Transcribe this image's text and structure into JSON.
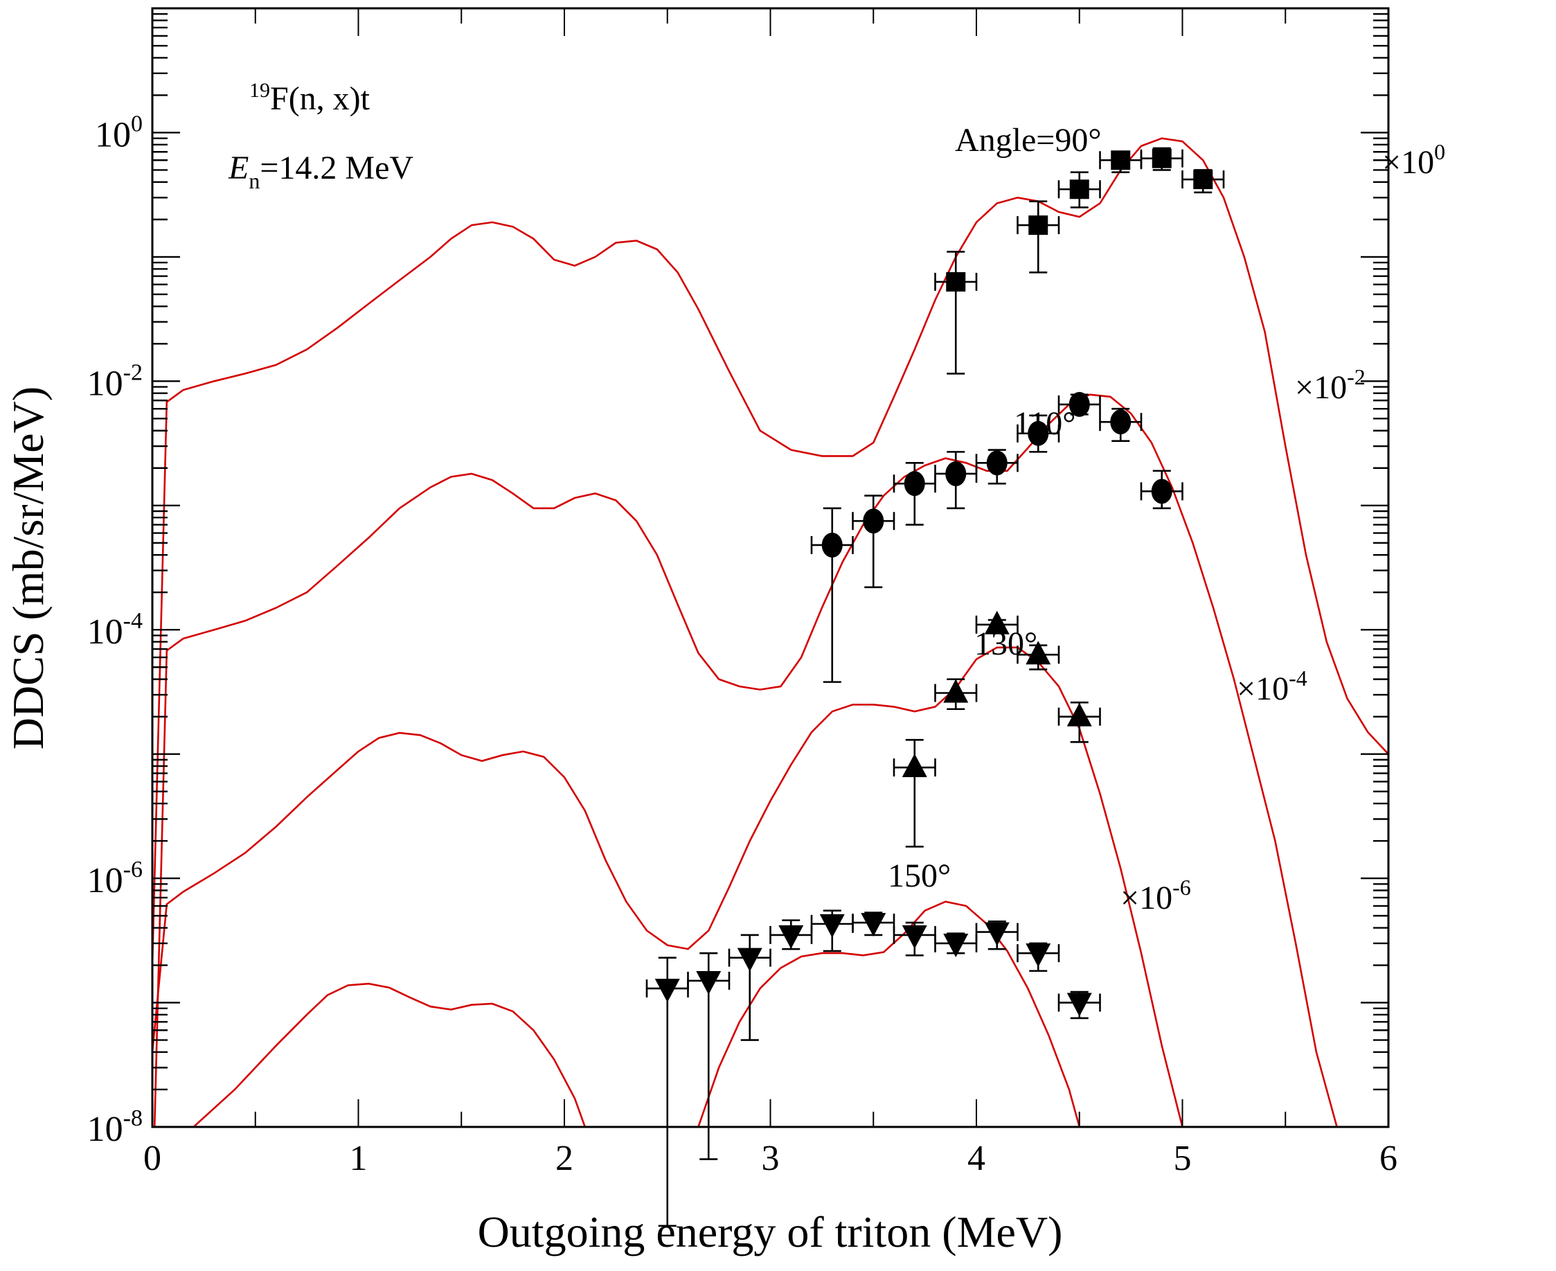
{
  "chart_data": {
    "type": "line",
    "title": "",
    "xlabel": "Outgoing energy of triton (MeV)",
    "ylabel": "DDCS (mb/sr/MeV)",
    "xlim": [
      0,
      6
    ],
    "ylim": [
      1e-08,
      10
    ],
    "yscale": "log",
    "x_ticks": [
      0,
      1,
      2,
      3,
      4,
      5,
      6
    ],
    "x_tick_labels": [
      "0",
      "1",
      "2",
      "3",
      "4",
      "5",
      "6"
    ],
    "y_ticks": [
      1,
      0.01,
      0.0001,
      1e-06,
      1e-08
    ],
    "y_tick_labels": [
      {
        "base": "10",
        "exp": "0"
      },
      {
        "base": "10",
        "exp": "-2"
      },
      {
        "base": "10",
        "exp": "-4"
      },
      {
        "base": "10",
        "exp": "-6"
      },
      {
        "base": "10",
        "exp": "-8"
      }
    ],
    "grid": false,
    "annotations": {
      "reaction": {
        "pre": "19",
        "main": "F(n, x)t"
      },
      "energy": {
        "sym": "E",
        "sub": "n",
        "rest": "=14.2 MeV"
      },
      "angle_label": "Angle=90°"
    },
    "curve_color": "#d40000",
    "series": [
      {
        "name": "90°",
        "label": "Angle=90°",
        "scale_label": {
          "base": "×10",
          "exp": "0"
        },
        "marker": "square",
        "calc": [
          [
            0,
            2e-07
          ],
          [
            0.07,
            0.0068
          ],
          [
            0.15,
            0.0085
          ],
          [
            0.3,
            0.01
          ],
          [
            0.45,
            0.0115
          ],
          [
            0.6,
            0.0135
          ],
          [
            0.75,
            0.018
          ],
          [
            0.9,
            0.027
          ],
          [
            1.05,
            0.042
          ],
          [
            1.2,
            0.065
          ],
          [
            1.35,
            0.1
          ],
          [
            1.45,
            0.14
          ],
          [
            1.55,
            0.18
          ],
          [
            1.65,
            0.19
          ],
          [
            1.75,
            0.175
          ],
          [
            1.85,
            0.14
          ],
          [
            1.95,
            0.095
          ],
          [
            2.05,
            0.085
          ],
          [
            2.15,
            0.1
          ],
          [
            2.25,
            0.13
          ],
          [
            2.35,
            0.135
          ],
          [
            2.45,
            0.115
          ],
          [
            2.55,
            0.075
          ],
          [
            2.65,
            0.038
          ],
          [
            2.8,
            0.012
          ],
          [
            2.95,
            0.004
          ],
          [
            3.1,
            0.0028
          ],
          [
            3.25,
            0.0025
          ],
          [
            3.4,
            0.0025
          ],
          [
            3.5,
            0.0032
          ],
          [
            3.6,
            0.0075
          ],
          [
            3.7,
            0.018
          ],
          [
            3.8,
            0.045
          ],
          [
            3.9,
            0.1
          ],
          [
            4.0,
            0.19
          ],
          [
            4.1,
            0.27
          ],
          [
            4.2,
            0.3
          ],
          [
            4.3,
            0.28
          ],
          [
            4.4,
            0.23
          ],
          [
            4.5,
            0.21
          ],
          [
            4.6,
            0.27
          ],
          [
            4.7,
            0.5
          ],
          [
            4.8,
            0.78
          ],
          [
            4.9,
            0.9
          ],
          [
            5.0,
            0.85
          ],
          [
            5.1,
            0.6
          ],
          [
            5.2,
            0.3
          ],
          [
            5.3,
            0.1
          ],
          [
            5.4,
            0.025
          ],
          [
            5.5,
            0.003
          ],
          [
            5.6,
            0.0004
          ],
          [
            5.7,
            8e-05
          ],
          [
            5.8,
            2.8e-05
          ],
          [
            5.9,
            1.5e-05
          ],
          [
            6.0,
            1e-05
          ]
        ],
        "points": [
          {
            "x": 3.9,
            "y": 0.063,
            "xerr": 0.1,
            "ylo": 0.0115,
            "yhi": 0.11
          },
          {
            "x": 4.3,
            "y": 0.18,
            "xerr": 0.1,
            "ylo": 0.075,
            "yhi": 0.28
          },
          {
            "x": 4.5,
            "y": 0.35,
            "xerr": 0.1,
            "ylo": 0.25,
            "yhi": 0.48
          },
          {
            "x": 4.7,
            "y": 0.6,
            "xerr": 0.1,
            "ylo": 0.48,
            "yhi": 0.7
          },
          {
            "x": 4.9,
            "y": 0.62,
            "xerr": 0.1,
            "ylo": 0.5,
            "yhi": 0.75
          },
          {
            "x": 5.1,
            "y": 0.42,
            "xerr": 0.1,
            "ylo": 0.33,
            "yhi": 0.5
          }
        ]
      },
      {
        "name": "110°",
        "label": "110°",
        "scale_label": {
          "base": "×10",
          "exp": "-2"
        },
        "marker": "circle",
        "calc": [
          [
            0,
            2e-09
          ],
          [
            0.07,
            6.8e-05
          ],
          [
            0.15,
            8.5e-05
          ],
          [
            0.3,
            0.0001
          ],
          [
            0.45,
            0.000118
          ],
          [
            0.6,
            0.00015
          ],
          [
            0.75,
            0.0002
          ],
          [
            0.9,
            0.00033
          ],
          [
            1.05,
            0.00055
          ],
          [
            1.2,
            0.00095
          ],
          [
            1.35,
            0.0014
          ],
          [
            1.45,
            0.0017
          ],
          [
            1.55,
            0.0018
          ],
          [
            1.65,
            0.0016
          ],
          [
            1.75,
            0.00125
          ],
          [
            1.85,
            0.00095
          ],
          [
            1.95,
            0.00095
          ],
          [
            2.05,
            0.00115
          ],
          [
            2.15,
            0.00125
          ],
          [
            2.25,
            0.0011
          ],
          [
            2.35,
            0.00075
          ],
          [
            2.45,
            0.0004
          ],
          [
            2.55,
            0.00016
          ],
          [
            2.65,
            6.5e-05
          ],
          [
            2.75,
            4e-05
          ],
          [
            2.85,
            3.5e-05
          ],
          [
            2.95,
            3.3e-05
          ],
          [
            3.05,
            3.5e-05
          ],
          [
            3.15,
            6e-05
          ],
          [
            3.25,
            0.00015
          ],
          [
            3.35,
            0.00035
          ],
          [
            3.45,
            0.0007
          ],
          [
            3.55,
            0.0012
          ],
          [
            3.65,
            0.0017
          ],
          [
            3.75,
            0.0021
          ],
          [
            3.85,
            0.0024
          ],
          [
            3.95,
            0.0022
          ],
          [
            4.05,
            0.0019
          ],
          [
            4.15,
            0.0019
          ],
          [
            4.25,
            0.0029
          ],
          [
            4.35,
            0.0045
          ],
          [
            4.45,
            0.0065
          ],
          [
            4.55,
            0.0078
          ],
          [
            4.65,
            0.0075
          ],
          [
            4.75,
            0.0055
          ],
          [
            4.85,
            0.0032
          ],
          [
            4.95,
            0.0014
          ],
          [
            5.05,
            0.0005
          ],
          [
            5.15,
            0.00015
          ],
          [
            5.25,
            4e-05
          ],
          [
            5.35,
            9e-06
          ],
          [
            5.45,
            2e-06
          ],
          [
            5.55,
            3e-07
          ],
          [
            5.65,
            4e-08
          ],
          [
            5.75,
            1e-08
          ]
        ],
        "points": [
          {
            "x": 3.3,
            "y": 0.00048,
            "xerr": 0.1,
            "ylo": 3.8e-05,
            "yhi": 0.00095
          },
          {
            "x": 3.5,
            "y": 0.00075,
            "xerr": 0.1,
            "ylo": 0.00022,
            "yhi": 0.0012
          },
          {
            "x": 3.7,
            "y": 0.0015,
            "xerr": 0.1,
            "ylo": 0.0007,
            "yhi": 0.0022
          },
          {
            "x": 3.9,
            "y": 0.0018,
            "xerr": 0.1,
            "ylo": 0.00095,
            "yhi": 0.0027
          },
          {
            "x": 4.1,
            "y": 0.0022,
            "xerr": 0.1,
            "ylo": 0.0015,
            "yhi": 0.0028
          },
          {
            "x": 4.3,
            "y": 0.0038,
            "xerr": 0.1,
            "ylo": 0.0027,
            "yhi": 0.0053
          },
          {
            "x": 4.5,
            "y": 0.0065,
            "xerr": 0.1,
            "ylo": 0.0054,
            "yhi": 0.0078
          },
          {
            "x": 4.7,
            "y": 0.0047,
            "xerr": 0.1,
            "ylo": 0.0033,
            "yhi": 0.006
          },
          {
            "x": 4.9,
            "y": 0.0013,
            "xerr": 0.1,
            "ylo": 0.00095,
            "yhi": 0.0019
          }
        ]
      },
      {
        "name": "130°",
        "label": "130°",
        "scale_label": {
          "base": "×10",
          "exp": "-4"
        },
        "marker": "triangle-up",
        "calc": [
          [
            0,
            4e-08
          ],
          [
            0.07,
            6.2e-07
          ],
          [
            0.15,
            7.8e-07
          ],
          [
            0.3,
            1.1e-06
          ],
          [
            0.45,
            1.6e-06
          ],
          [
            0.6,
            2.6e-06
          ],
          [
            0.75,
            4.5e-06
          ],
          [
            0.9,
            7.5e-06
          ],
          [
            1.0,
            1.05e-05
          ],
          [
            1.1,
            1.35e-05
          ],
          [
            1.2,
            1.48e-05
          ],
          [
            1.3,
            1.42e-05
          ],
          [
            1.4,
            1.22e-05
          ],
          [
            1.5,
            9.8e-06
          ],
          [
            1.6,
            8.8e-06
          ],
          [
            1.7,
            9.8e-06
          ],
          [
            1.8,
            1.05e-05
          ],
          [
            1.9,
            9.5e-06
          ],
          [
            2.0,
            6.5e-06
          ],
          [
            2.1,
            3.5e-06
          ],
          [
            2.2,
            1.4e-06
          ],
          [
            2.3,
            6.5e-07
          ],
          [
            2.4,
            3.8e-07
          ],
          [
            2.5,
            2.9e-07
          ],
          [
            2.6,
            2.7e-07
          ],
          [
            2.7,
            3.8e-07
          ],
          [
            2.8,
            8.5e-07
          ],
          [
            2.9,
            2e-06
          ],
          [
            3.0,
            4.2e-06
          ],
          [
            3.1,
            8.2e-06
          ],
          [
            3.2,
            1.5e-05
          ],
          [
            3.3,
            2.2e-05
          ],
          [
            3.4,
            2.5e-05
          ],
          [
            3.5,
            2.5e-05
          ],
          [
            3.6,
            2.4e-05
          ],
          [
            3.7,
            2.2e-05
          ],
          [
            3.8,
            2.4e-05
          ],
          [
            3.9,
            3.4e-05
          ],
          [
            4.0,
            5.8e-05
          ],
          [
            4.1,
            7.2e-05
          ],
          [
            4.2,
            7.2e-05
          ],
          [
            4.3,
            5.5e-05
          ],
          [
            4.4,
            3.5e-05
          ],
          [
            4.5,
            1.6e-05
          ],
          [
            4.6,
            4.8e-06
          ],
          [
            4.7,
            1.2e-06
          ],
          [
            4.8,
            2.5e-07
          ],
          [
            4.9,
            4.5e-08
          ],
          [
            5.0,
            1e-08
          ]
        ],
        "points": [
          {
            "x": 3.7,
            "y": 7.8e-06,
            "xerr": 0.1,
            "ylo": 1.8e-06,
            "yhi": 1.3e-05
          },
          {
            "x": 3.9,
            "y": 3.1e-05,
            "xerr": 0.1,
            "ylo": 2.3e-05,
            "yhi": 4e-05
          },
          {
            "x": 4.1,
            "y": 0.00011,
            "xerr": 0.1,
            "ylo": 9.55e-05,
            "yhi": 0.00012
          },
          {
            "x": 4.3,
            "y": 6.3e-05,
            "xerr": 0.1,
            "ylo": 4.8e-05,
            "yhi": 7.5e-05
          },
          {
            "x": 4.5,
            "y": 2e-05,
            "xerr": 0.1,
            "ylo": 1.25e-05,
            "yhi": 2.6e-05
          }
        ]
      },
      {
        "name": "150°",
        "label": "150°",
        "scale_label": {
          "base": "×10",
          "exp": "-6"
        },
        "marker": "triangle-down",
        "calc": [
          [
            0.2,
            1e-08
          ],
          [
            0.4,
            2e-08
          ],
          [
            0.6,
            4.5e-08
          ],
          [
            0.75,
            8e-08
          ],
          [
            0.85,
            1.15e-07
          ],
          [
            0.95,
            1.38e-07
          ],
          [
            1.05,
            1.42e-07
          ],
          [
            1.15,
            1.32e-07
          ],
          [
            1.25,
            1.1e-07
          ],
          [
            1.35,
            9.3e-08
          ],
          [
            1.45,
            8.8e-08
          ],
          [
            1.55,
            9.6e-08
          ],
          [
            1.65,
            9.8e-08
          ],
          [
            1.75,
            8.5e-08
          ],
          [
            1.85,
            6e-08
          ],
          [
            1.95,
            3.5e-08
          ],
          [
            2.05,
            1.7e-08
          ],
          [
            2.1,
            1e-08
          ]
        ],
        "calc2": [
          [
            2.65,
            1e-08
          ],
          [
            2.75,
            3e-08
          ],
          [
            2.85,
            7e-08
          ],
          [
            2.95,
            1.3e-07
          ],
          [
            3.05,
            1.9e-07
          ],
          [
            3.15,
            2.35e-07
          ],
          [
            3.25,
            2.5e-07
          ],
          [
            3.35,
            2.5e-07
          ],
          [
            3.45,
            2.4e-07
          ],
          [
            3.55,
            2.55e-07
          ],
          [
            3.65,
            3.6e-07
          ],
          [
            3.75,
            5.5e-07
          ],
          [
            3.85,
            6.5e-07
          ],
          [
            3.95,
            6e-07
          ],
          [
            4.05,
            4.3e-07
          ],
          [
            4.15,
            2.6e-07
          ],
          [
            4.25,
            1.3e-07
          ],
          [
            4.35,
            5.5e-08
          ],
          [
            4.45,
            2e-08
          ],
          [
            4.5,
            1e-08
          ]
        ],
        "points": [
          {
            "x": 2.5,
            "y": 1.3e-07,
            "xerr": 0.1,
            "ylo": 1.6e-09,
            "yhi": 2.3e-07
          },
          {
            "x": 2.7,
            "y": 1.5e-07,
            "xerr": 0.1,
            "ylo": 5.5e-09,
            "yhi": 2.5e-07
          },
          {
            "x": 2.9,
            "y": 2.3e-07,
            "xerr": 0.1,
            "ylo": 5e-08,
            "yhi": 3.5e-07
          },
          {
            "x": 3.1,
            "y": 3.5e-07,
            "xerr": 0.1,
            "ylo": 2.7e-07,
            "yhi": 4.6e-07
          },
          {
            "x": 3.3,
            "y": 4.3e-07,
            "xerr": 0.1,
            "ylo": 2.6e-07,
            "yhi": 5.5e-07
          },
          {
            "x": 3.5,
            "y": 4.4e-07,
            "xerr": 0.1,
            "ylo": 3.5e-07,
            "yhi": 5.3e-07
          },
          {
            "x": 3.7,
            "y": 3.5e-07,
            "xerr": 0.1,
            "ylo": 2.4e-07,
            "yhi": 4.4e-07
          },
          {
            "x": 3.9,
            "y": 3e-07,
            "xerr": 0.1,
            "ylo": 2.5e-07,
            "yhi": 3.6e-07
          },
          {
            "x": 4.1,
            "y": 3.7e-07,
            "xerr": 0.1,
            "ylo": 2.7e-07,
            "yhi": 4.5e-07
          },
          {
            "x": 4.3,
            "y": 2.5e-07,
            "xerr": 0.1,
            "ylo": 1.8e-07,
            "yhi": 3e-07
          },
          {
            "x": 4.5,
            "y": 1e-07,
            "xerr": 0.1,
            "ylo": 7.5e-08,
            "yhi": 1.22e-07
          }
        ]
      }
    ]
  }
}
